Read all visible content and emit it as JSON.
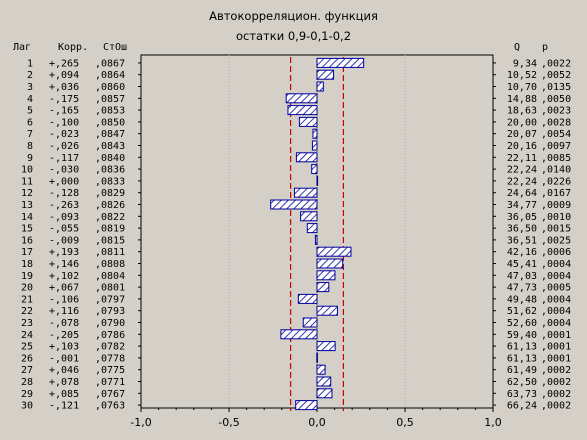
{
  "title": "Автокорреляцион. функция",
  "subtitle": "остатки 0,9-0,1-0,2",
  "headers": {
    "lag": "Лаг",
    "corr": "Корр.",
    "se": "СтОш",
    "q": "Q",
    "p": "p"
  },
  "colors": {
    "background": "#d4d0c8",
    "bar_fill": "#ffffff",
    "bar_hatch": "#0000a0",
    "confidence_line": "#cc0000",
    "grid": "#b0b0b0"
  },
  "chart_data": {
    "type": "bar",
    "orientation": "horizontal",
    "title": "Автокорреляцион. функция",
    "subtitle": "остатки 0,9-0,1-0,2",
    "xlim": [
      -1.0,
      1.0
    ],
    "xticks": [
      "-1,0",
      "-0,5",
      "0,0",
      "0,5",
      "1,0"
    ],
    "xtick_values": [
      -1.0,
      -0.5,
      0.0,
      0.5,
      1.0
    ],
    "confidence_limit": 0.15,
    "rows": [
      {
        "lag": "1",
        "corr": "+,265",
        "se": ",0867",
        "q": "9,34",
        "p": ",0022",
        "value": 0.265,
        "se_value": 0.0867
      },
      {
        "lag": "2",
        "corr": "+,094",
        "se": ",0864",
        "q": "10,52",
        "p": ",0052",
        "value": 0.094,
        "se_value": 0.0864
      },
      {
        "lag": "3",
        "corr": "+,036",
        "se": ",0860",
        "q": "10,70",
        "p": ",0135",
        "value": 0.036,
        "se_value": 0.086
      },
      {
        "lag": "4",
        "corr": "-,175",
        "se": ",0857",
        "q": "14,88",
        "p": ",0050",
        "value": -0.175,
        "se_value": 0.0857
      },
      {
        "lag": "5",
        "corr": "-,165",
        "se": ",0853",
        "q": "18,63",
        "p": ",0023",
        "value": -0.165,
        "se_value": 0.0853
      },
      {
        "lag": "6",
        "corr": "-,100",
        "se": ",0850",
        "q": "20,00",
        "p": ",0028",
        "value": -0.1,
        "se_value": 0.085
      },
      {
        "lag": "7",
        "corr": "-,023",
        "se": ",0847",
        "q": "20,07",
        "p": ",0054",
        "value": -0.023,
        "se_value": 0.0847
      },
      {
        "lag": "8",
        "corr": "-,026",
        "se": ",0843",
        "q": "20,16",
        "p": ",0097",
        "value": -0.026,
        "se_value": 0.0843
      },
      {
        "lag": "9",
        "corr": "-,117",
        "se": ",0840",
        "q": "22,11",
        "p": ",0085",
        "value": -0.117,
        "se_value": 0.084
      },
      {
        "lag": "10",
        "corr": "-,030",
        "se": ",0836",
        "q": "22,24",
        "p": ",0140",
        "value": -0.03,
        "se_value": 0.0836
      },
      {
        "lag": "11",
        "corr": "+,000",
        "se": ",0833",
        "q": "22,24",
        "p": ",0226",
        "value": 0.0,
        "se_value": 0.0833
      },
      {
        "lag": "12",
        "corr": "-,128",
        "se": ",0829",
        "q": "24,64",
        "p": ",0167",
        "value": -0.128,
        "se_value": 0.0829
      },
      {
        "lag": "13",
        "corr": "-,263",
        "se": ",0826",
        "q": "34,77",
        "p": ",0009",
        "value": -0.263,
        "se_value": 0.0826
      },
      {
        "lag": "14",
        "corr": "-,093",
        "se": ",0822",
        "q": "36,05",
        "p": ",0010",
        "value": -0.093,
        "se_value": 0.0822
      },
      {
        "lag": "15",
        "corr": "-,055",
        "se": ",0819",
        "q": "36,50",
        "p": ",0015",
        "value": -0.055,
        "se_value": 0.0819
      },
      {
        "lag": "16",
        "corr": "-,009",
        "se": ",0815",
        "q": "36,51",
        "p": ",0025",
        "value": -0.009,
        "se_value": 0.0815
      },
      {
        "lag": "17",
        "corr": "+,193",
        "se": ",0811",
        "q": "42,16",
        "p": ",0006",
        "value": 0.193,
        "se_value": 0.0811
      },
      {
        "lag": "18",
        "corr": "+,146",
        "se": ",0808",
        "q": "45,41",
        "p": ",0004",
        "value": 0.146,
        "se_value": 0.0808
      },
      {
        "lag": "19",
        "corr": "+,102",
        "se": ",0804",
        "q": "47,03",
        "p": ",0004",
        "value": 0.102,
        "se_value": 0.0804
      },
      {
        "lag": "20",
        "corr": "+,067",
        "se": ",0801",
        "q": "47,73",
        "p": ",0005",
        "value": 0.067,
        "se_value": 0.0801
      },
      {
        "lag": "21",
        "corr": "-,106",
        "se": ",0797",
        "q": "49,48",
        "p": ",0004",
        "value": -0.106,
        "se_value": 0.0797
      },
      {
        "lag": "22",
        "corr": "+,116",
        "se": ",0793",
        "q": "51,62",
        "p": ",0004",
        "value": 0.116,
        "se_value": 0.0793
      },
      {
        "lag": "23",
        "corr": "-,078",
        "se": ",0790",
        "q": "52,60",
        "p": ",0004",
        "value": -0.078,
        "se_value": 0.079
      },
      {
        "lag": "24",
        "corr": "-,205",
        "se": ",0786",
        "q": "59,40",
        "p": ",0001",
        "value": -0.205,
        "se_value": 0.0786
      },
      {
        "lag": "25",
        "corr": "+,103",
        "se": ",0782",
        "q": "61,13",
        "p": ",0001",
        "value": 0.103,
        "se_value": 0.0782
      },
      {
        "lag": "26",
        "corr": "-,001",
        "se": ",0778",
        "q": "61,13",
        "p": ",0001",
        "value": -0.001,
        "se_value": 0.0778
      },
      {
        "lag": "27",
        "corr": "+,046",
        "se": ",0775",
        "q": "61,49",
        "p": ",0002",
        "value": 0.046,
        "se_value": 0.0775
      },
      {
        "lag": "28",
        "corr": "+,078",
        "se": ",0771",
        "q": "62,50",
        "p": ",0002",
        "value": 0.078,
        "se_value": 0.0771
      },
      {
        "lag": "29",
        "corr": "+,085",
        "se": ",0767",
        "q": "63,73",
        "p": ",0002",
        "value": 0.085,
        "se_value": 0.0767
      },
      {
        "lag": "30",
        "corr": "-,121",
        "se": ",0763",
        "q": "66,24",
        "p": ",0002",
        "value": -0.121,
        "se_value": 0.0763
      }
    ]
  }
}
